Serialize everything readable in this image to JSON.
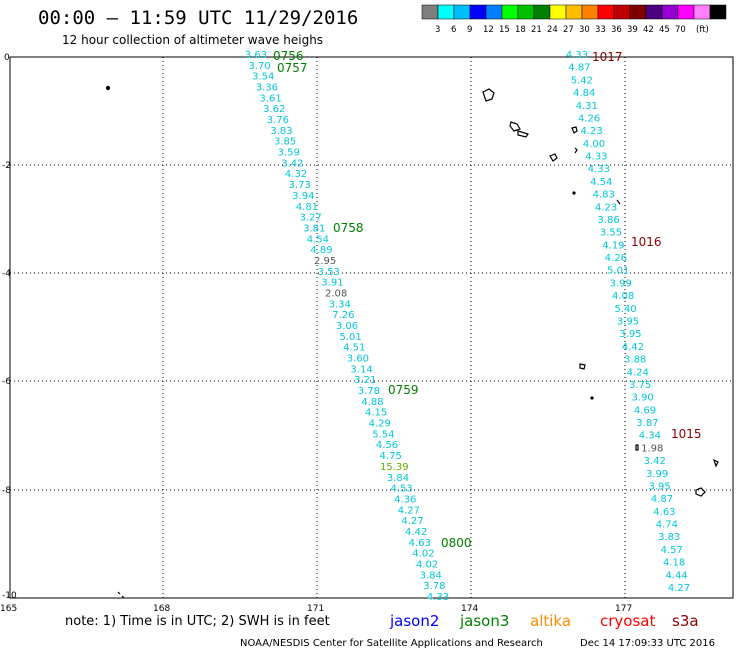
{
  "title": "00:00 – 11:59 UTC 11/29/2016",
  "subtitle": "12 hour collection of altimeter wave heighs",
  "colorbar": {
    "colors": [
      "#7f7f7f",
      "#00ffff",
      "#00bfff",
      "#0000ff",
      "#007fff",
      "#00ff00",
      "#00c000",
      "#008000",
      "#ffff00",
      "#ffbf00",
      "#ff7f00",
      "#ff0000",
      "#c00000",
      "#800000",
      "#4b0082",
      "#9400d3",
      "#ff00ff",
      "#ff80ff",
      "#000000"
    ],
    "labels": [
      "3",
      "6",
      "9",
      "12",
      "15",
      "18",
      "21",
      "24",
      "27",
      "30",
      "33",
      "36",
      "39",
      "42",
      "45",
      "70",
      "(ft)"
    ]
  },
  "y_ticks": [
    "0",
    "-2",
    "-4",
    "-6",
    "-8",
    "-10"
  ],
  "x_ticks": [
    "165",
    "168",
    "171",
    "174",
    "177"
  ],
  "track_west": {
    "color": "#00c8d8",
    "values": [
      "3.63",
      "3.70",
      "3.54",
      "3.36",
      "3.61",
      "3.62",
      "3.76",
      "3.83",
      "3.85",
      "3.59",
      "3.42",
      "4.32",
      "3.73",
      "3.94",
      "4.81",
      "3.27",
      "3.81",
      "4.54",
      "4.89",
      "2.95",
      "3.53",
      "3.91",
      "2.08",
      "3.34",
      "7.26",
      "3.06",
      "5.01",
      "4.51",
      "3.60",
      "3.14",
      "3.21",
      "3.78",
      "4.88",
      "4.15",
      "4.29",
      "5.54",
      "4.56",
      "4.75",
      "15.39",
      "3.84",
      "4.53",
      "4.36",
      "4.27",
      "4.27",
      "4.42",
      "4.63",
      "4.02",
      "4.02",
      "3.84",
      "3.78",
      "4.33"
    ],
    "gray_values": [
      "2.95",
      "2.08"
    ],
    "yellowgreen_values": [
      "15.39"
    ],
    "times": [
      "0756",
      "0757",
      "0758",
      "0759",
      "0800"
    ]
  },
  "track_east": {
    "color": "#00c8d8",
    "values": [
      "4.33",
      "4.87",
      "5.42",
      "4.84",
      "4.31",
      "4.26",
      "4.23",
      "4.00",
      "4.33",
      "4.33",
      "4.54",
      "4.83",
      "4.23",
      "3.86",
      "3.55",
      "4.19",
      "4.26",
      "5.01",
      "3.99",
      "4.08",
      "5.40",
      "3.95",
      "3.95",
      "4.42",
      "3.88",
      "4.24",
      "3.75",
      "3.90",
      "4.69",
      "3.87",
      "4.34",
      "1.98",
      "3.42",
      "3.99",
      "3.95",
      "4.87",
      "4.63",
      "4.74",
      "3.83",
      "4.57",
      "4.18",
      "4.44",
      "4.27"
    ],
    "gray_values": [
      "1.98"
    ],
    "times": [
      "1017",
      "1016",
      "1015"
    ]
  },
  "note": "note: 1) Time is in UTC; 2) SWH is in feet",
  "legend": [
    {
      "name": "jason2",
      "color": "#0000ff"
    },
    {
      "name": "jason3",
      "color": "#008000"
    },
    {
      "name": "altika",
      "color": "#ff8c00"
    },
    {
      "name": "cryosat",
      "color": "#ff0000"
    },
    {
      "name": "s3a",
      "color": "#8b0000"
    }
  ],
  "credit": "NOAA/NESDIS Center for Satellite Applications and Research",
  "timestamp": "Dec 14 17:09:33 UTC 2016"
}
